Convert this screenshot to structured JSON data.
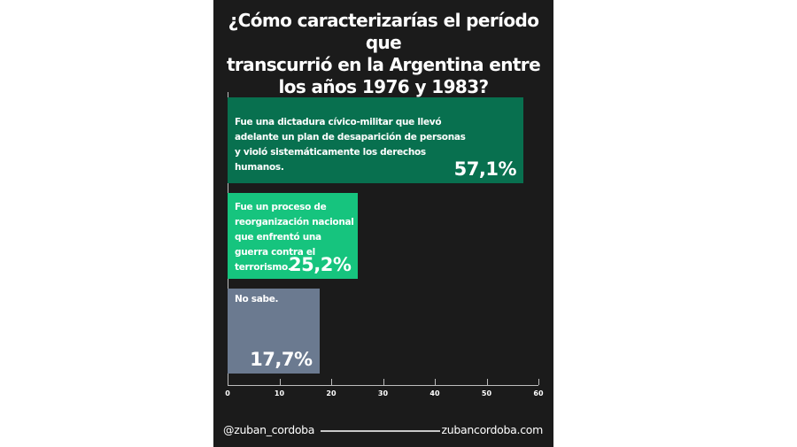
{
  "title": "¿Cómo caracterizarías el período que transcurrió en la Argentina entre los años 1976 y 1983?",
  "title_lines": [
    "¿Cómo caracterizarías el período que",
    "transcurrió en la Argentina entre",
    "los años 1976 y 1983?"
  ],
  "bars": [
    {
      "label": "Fue una dictadura cívico-militar que llevó adelante un plan de desaparición de personas y violó sistemáticamente los derechos humanos.",
      "value_label": "57,1%",
      "value": 57.1,
      "color": "#08704f"
    },
    {
      "label": "Fue un proceso de reorganización nacional que enfrentó una guerra contra el terrorismo.",
      "value_label": "25,2%",
      "value": 25.2,
      "color": "#16c47e"
    },
    {
      "label": "No sabe.",
      "value_label": "17,7%",
      "value": 17.7,
      "color": "#6b7a90"
    }
  ],
  "axis": {
    "ticks": [
      "0",
      "10",
      "20",
      "30",
      "40",
      "50",
      "60"
    ]
  },
  "footer": {
    "left": "@zuban_cordoba",
    "right": "zubancordoba.com"
  },
  "chart_data": {
    "type": "bar",
    "orientation": "horizontal",
    "title": "¿Cómo caracterizarías el período que transcurrió en la Argentina entre los años 1976 y 1983?",
    "categories": [
      "Fue una dictadura cívico-militar que llevó adelante un plan de desaparición de personas y violó sistemáticamente los derechos humanos.",
      "Fue un proceso de reorganización nacional que enfrentó una guerra contra el terrorismo.",
      "No sabe."
    ],
    "values": [
      57.1,
      25.2,
      17.7
    ],
    "colors": [
      "#08704f",
      "#16c47e",
      "#6b7a90"
    ],
    "xlabel": "",
    "ylabel": "",
    "xlim": [
      0,
      60
    ],
    "xticks": [
      0,
      10,
      20,
      30,
      40,
      50,
      60
    ],
    "grid": false,
    "legend": "none",
    "data_labels": [
      "57,1%",
      "25,2%",
      "17,7%"
    ],
    "source": "@zuban_cordoba / zubancordoba.com"
  }
}
